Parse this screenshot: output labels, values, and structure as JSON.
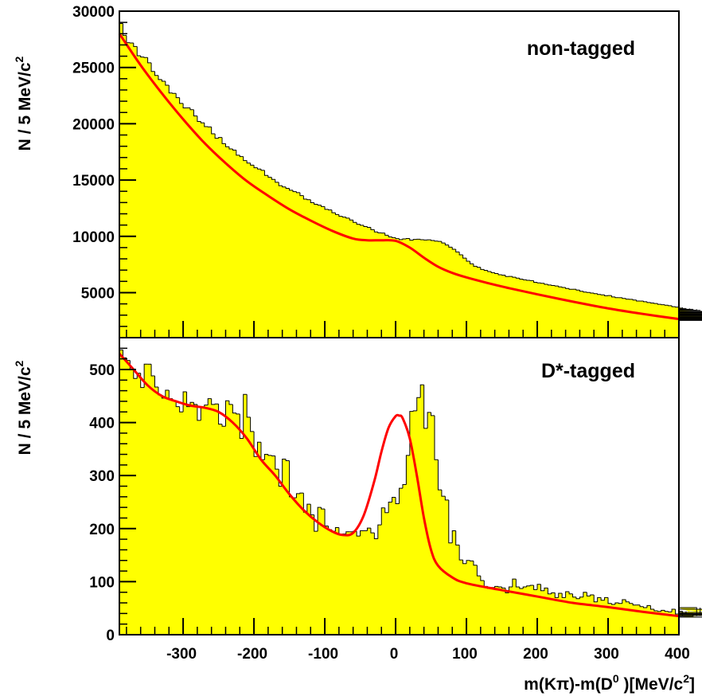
{
  "colors": {
    "fill": "#ffff00",
    "outline": "#000000",
    "fit": "#ff0000",
    "frame": "#000000"
  },
  "chart_data": [
    {
      "type": "area",
      "panel_label": "non-tagged",
      "ylabel": "N / 5 MeV/c",
      "ylabel_sup": "2",
      "xlim": [
        -390,
        400
      ],
      "ylim": [
        1000,
        30000
      ],
      "y_ticks": [
        5000,
        10000,
        15000,
        20000,
        25000,
        30000
      ],
      "y_tick_labels": [
        "5000",
        "10000",
        "15000",
        "20000",
        "25000",
        "30000"
      ],
      "fit": {
        "name": "fit",
        "x": [
          -390,
          -360,
          -330,
          -300,
          -270,
          -240,
          -210,
          -180,
          -150,
          -120,
          -90,
          -60,
          -40,
          -20,
          0,
          20,
          40,
          60,
          80,
          100,
          130,
          160,
          200,
          250,
          300,
          350,
          400
        ],
        "y": [
          28000,
          25200,
          22700,
          20400,
          18300,
          16500,
          14900,
          13600,
          12400,
          11400,
          10500,
          9800,
          9650,
          9650,
          9600,
          9000,
          8100,
          7300,
          6750,
          6350,
          5850,
          5400,
          4850,
          4200,
          3600,
          3100,
          2650
        ]
      },
      "histogram": {
        "bin_width": 5,
        "x_start": -390,
        "values": [
          28900,
          27850,
          27200,
          27175,
          26860,
          26040,
          25920,
          25880,
          25410,
          24640,
          24290,
          23930,
          23780,
          23420,
          22730,
          22700,
          22320,
          21800,
          21410,
          21410,
          21250,
          20690,
          20200,
          20080,
          19740,
          19720,
          19110,
          18710,
          18780,
          18230,
          17960,
          17760,
          17660,
          17210,
          17080,
          16730,
          16510,
          16320,
          16090,
          15980,
          15860,
          15410,
          15240,
          15060,
          14800,
          14500,
          14390,
          14260,
          14090,
          13970,
          13880,
          13620,
          13310,
          13250,
          12990,
          12850,
          12770,
          12640,
          12400,
          12340,
          12100,
          11940,
          11780,
          11710,
          11620,
          11450,
          11240,
          11070,
          10980,
          10870,
          10800,
          10590,
          10390,
          10310,
          10290,
          10100,
          9950,
          9890,
          9800,
          9710,
          9770,
          9810,
          9660,
          9730,
          9740,
          9700,
          9670,
          9690,
          9630,
          9580,
          9550,
          9410,
          9230,
          9040,
          8850,
          8610,
          8360,
          8060,
          7790,
          7560,
          7340,
          7250,
          7060,
          6980,
          6870,
          6770,
          6690,
          6590,
          6550,
          6430,
          6440,
          6370,
          6290,
          6200,
          6140,
          6090,
          6070,
          5920,
          5860,
          5830,
          5740,
          5680,
          5630,
          5590,
          5510,
          5460,
          5370,
          5300,
          5300,
          5230,
          5120,
          5050,
          5010,
          4960,
          4910,
          4840,
          4800,
          4720,
          4740,
          4620,
          4550,
          4550,
          4480,
          4420,
          4400,
          4340,
          4250,
          4250,
          4190,
          4120,
          4080,
          4030,
          3960,
          3930,
          3880,
          3840,
          3750,
          3710,
          3690,
          3630,
          3590,
          3500,
          3520,
          3440,
          3420,
          3330,
          3260,
          3260,
          3210,
          3170,
          3100,
          3080,
          3030,
          2990,
          2920,
          2930,
          2880,
          2810,
          2810,
          2750,
          2720,
          2690,
          2620,
          2620,
          2560,
          2530
        ]
      }
    },
    {
      "type": "area",
      "panel_label": "D*-tagged",
      "ylabel": "N / 5 MeV/c",
      "ylabel_sup": "2",
      "xlabel_main": "m(Kπ)-m(D",
      "xlabel_sup1": "0",
      "xlabel_mid": " )[MeV/c",
      "xlabel_sup2": "2",
      "xlabel_end": "]",
      "xlim": [
        -390,
        400
      ],
      "ylim": [
        0,
        560
      ],
      "x_ticks": [
        -300,
        -200,
        -100,
        0,
        100,
        200,
        300,
        400
      ],
      "x_tick_labels": [
        "-300",
        "-200",
        "-100",
        "0",
        "100",
        "200",
        "300",
        "400"
      ],
      "y_ticks": [
        0,
        100,
        200,
        300,
        400,
        500
      ],
      "y_tick_labels": [
        "0",
        "100",
        "200",
        "300",
        "400",
        "500"
      ],
      "fit": {
        "name": "fit",
        "x": [
          -390,
          -370,
          -350,
          -330,
          -310,
          -290,
          -270,
          -250,
          -230,
          -210,
          -190,
          -170,
          -150,
          -130,
          -110,
          -90,
          -75,
          -60,
          -45,
          -30,
          -20,
          -10,
          0,
          5,
          10,
          20,
          30,
          40,
          50,
          60,
          80,
          100,
          150,
          200,
          250,
          300,
          350,
          400
        ],
        "y": [
          530,
          500,
          470,
          450,
          440,
          432,
          428,
          420,
          400,
          370,
          330,
          300,
          265,
          235,
          212,
          195,
          188,
          192,
          225,
          290,
          345,
          390,
          412,
          413,
          408,
          370,
          300,
          220,
          160,
          130,
          108,
          97,
          84,
          72,
          60,
          52,
          43,
          35
        ]
      },
      "histogram": {
        "bin_width": 5,
        "x_start": -390,
        "values": [
          537,
          522,
          517,
          500,
          483,
          493,
          466,
          510,
          510,
          488,
          467,
          452,
          446,
          461,
          445,
          441,
          430,
          420,
          458,
          430,
          438,
          434,
          404,
          429,
          433,
          445,
          434,
          435,
          397,
          393,
          441,
          434,
          418,
          416,
          370,
          453,
          410,
          383,
          336,
          363,
          330,
          340,
          338,
          337,
          312,
          280,
          331,
          328,
          260,
          258,
          266,
          267,
          231,
          246,
          226,
          195,
          240,
          237,
          205,
          198,
          195,
          202,
          190,
          190,
          194,
          194,
          195,
          186,
          196,
          196,
          201,
          192,
          181,
          207,
          239,
          230,
          250,
          259,
          247,
          276,
          283,
          338,
          421,
          422,
          447,
          471,
          389,
          419,
          413,
          330,
          273,
          261,
          254,
          173,
          196,
          169,
          141,
          134,
          140,
          139,
          131,
          111,
          102,
          91,
          87,
          89,
          91,
          90,
          88,
          79,
          90,
          105,
          90,
          87,
          90,
          92,
          93,
          85,
          95,
          83,
          88,
          77,
          79,
          70,
          78,
          70,
          81,
          77,
          71,
          68,
          71,
          80,
          73,
          75,
          62,
          70,
          65,
          70,
          59,
          57,
          60,
          59,
          66,
          62,
          59,
          56,
          56,
          53,
          51,
          55,
          48,
          45,
          44,
          46,
          44,
          43,
          48,
          39,
          37,
          44,
          40,
          39,
          35,
          51,
          36,
          33,
          39,
          39,
          40,
          42,
          48,
          38,
          36
        ]
      }
    }
  ]
}
